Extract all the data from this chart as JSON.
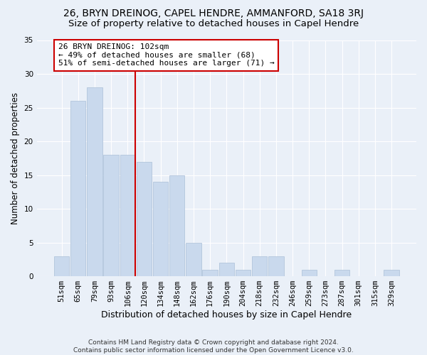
{
  "title1": "26, BRYN DREINOG, CAPEL HENDRE, AMMANFORD, SA18 3RJ",
  "title2": "Size of property relative to detached houses in Capel Hendre",
  "xlabel": "Distribution of detached houses by size in Capel Hendre",
  "ylabel": "Number of detached properties",
  "footnote1": "Contains HM Land Registry data © Crown copyright and database right 2024.",
  "footnote2": "Contains public sector information licensed under the Open Government Licence v3.0.",
  "categories": [
    "51sqm",
    "65sqm",
    "79sqm",
    "93sqm",
    "106sqm",
    "120sqm",
    "134sqm",
    "148sqm",
    "162sqm",
    "176sqm",
    "190sqm",
    "204sqm",
    "218sqm",
    "232sqm",
    "246sqm",
    "259sqm",
    "273sqm",
    "287sqm",
    "301sqm",
    "315sqm",
    "329sqm"
  ],
  "values": [
    3,
    26,
    28,
    18,
    18,
    17,
    14,
    15,
    5,
    1,
    2,
    1,
    3,
    3,
    0,
    1,
    0,
    1,
    0,
    0,
    1
  ],
  "bar_color": "#c9d9ed",
  "bar_edge_color": "#aabfd8",
  "vline_x_index": 4,
  "vline_color": "#cc0000",
  "annotation_text": "26 BRYN DREINOG: 102sqm\n← 49% of detached houses are smaller (68)\n51% of semi-detached houses are larger (71) →",
  "annotation_box_facecolor": "white",
  "annotation_box_edgecolor": "#cc0000",
  "ylim": [
    0,
    35
  ],
  "yticks": [
    0,
    5,
    10,
    15,
    20,
    25,
    30,
    35
  ],
  "background_color": "#eaf0f8",
  "grid_color": "white",
  "title1_fontsize": 10,
  "title2_fontsize": 9.5,
  "xlabel_fontsize": 9,
  "ylabel_fontsize": 8.5,
  "tick_fontsize": 7.5,
  "annotation_fontsize": 8,
  "footnote_fontsize": 6.5
}
